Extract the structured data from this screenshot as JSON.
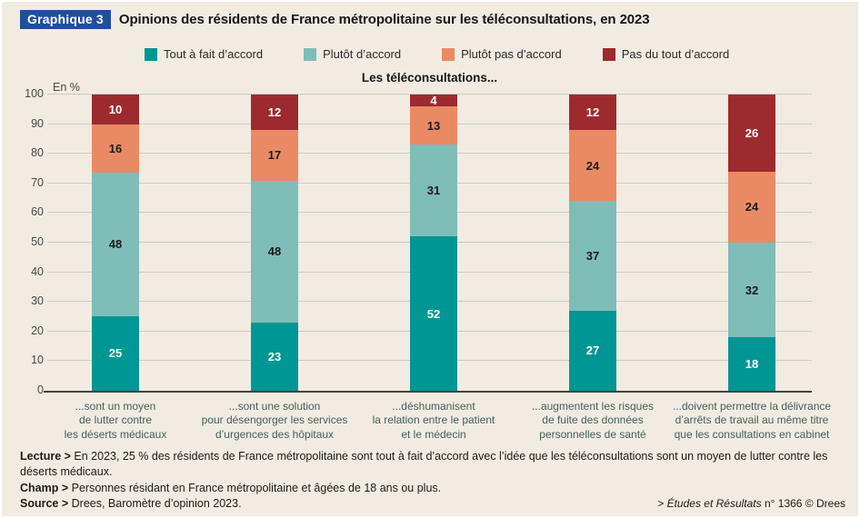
{
  "page": {
    "background": "#f1ebe2"
  },
  "header": {
    "badge": "Graphique 3",
    "badge_color": "#1f4f9c",
    "title": "Opinions des résidents de France métropolitaine sur les téléconsultations, en 2023"
  },
  "chart_data": {
    "type": "bar",
    "stacked": true,
    "title": "Les téléconsultations...",
    "unit_label": "En %",
    "ylim": [
      0,
      100
    ],
    "yticks": [
      0,
      10,
      20,
      30,
      40,
      50,
      60,
      70,
      80,
      90,
      100
    ],
    "grid": true,
    "legend_position": "top",
    "categories": [
      [
        "...sont un moyen",
        "de lutter contre",
        "les déserts médicaux"
      ],
      [
        "...sont une solution",
        "pour désengorger les services",
        "d’urgences des hôpitaux"
      ],
      [
        "...déshumanisent",
        "la relation entre le patient",
        "et le médecin"
      ],
      [
        "...augmentent les risques",
        "de fuite des données",
        "personnelles de santé"
      ],
      [
        "...doivent permettre la délivrance",
        "d’arrêts de travail au même titre",
        "que les consultations en cabinet"
      ]
    ],
    "series": [
      {
        "name": "Tout à fait d’accord",
        "color": "#009693",
        "label_color": "#ffffff",
        "values": [
          25,
          23,
          52,
          27,
          18
        ]
      },
      {
        "name": "Plutôt d’accord",
        "color": "#7fbdb8",
        "label_color": "#1c1c1c",
        "values": [
          48,
          48,
          31,
          37,
          32
        ]
      },
      {
        "name": "Plutôt pas d’accord",
        "color": "#e98a64",
        "label_color": "#1c1c1c",
        "values": [
          16,
          17,
          13,
          24,
          24
        ]
      },
      {
        "name": "Pas du tout d’accord",
        "color": "#9d2a2f",
        "label_color": "#ffffff",
        "values": [
          10,
          12,
          4,
          12,
          26
        ]
      }
    ]
  },
  "footer": {
    "lecture_label": "Lecture >",
    "lecture_text": " En 2023, 25 % des résidents de France métropolitaine sont tout à fait d’accord avec l’idée que les téléconsultations sont un moyen de lutter contre les déserts médicaux.",
    "champ_label": "Champ >",
    "champ_text": " Personnes résidant en France métropolitaine et âgées de 18 ans ou plus.",
    "source_label": "Source >",
    "source_text": " Drees, Baromètre d’opinion 2023.",
    "credit_prefix": "> ",
    "credit_journal": "Études et Résultats",
    "credit_suffix": " n° 1366 © Drees"
  }
}
